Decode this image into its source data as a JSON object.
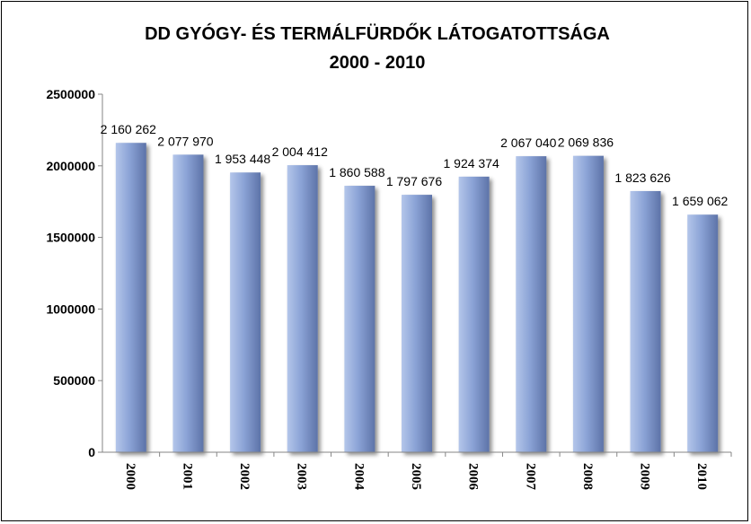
{
  "chart_data": {
    "type": "bar",
    "title": "DD GYÓGY- ÉS TERMÁLFÜRDŐK LÁTOGATOTTSÁGA",
    "subtitle": "2000 - 2010",
    "xlabel": "",
    "ylabel": "",
    "categories": [
      "2000",
      "2001",
      "2002",
      "2003",
      "2004",
      "2005",
      "2006",
      "2007",
      "2008",
      "2009",
      "2010"
    ],
    "values": [
      2160262,
      2077970,
      1953448,
      2004412,
      1860588,
      1797676,
      1924374,
      2067040,
      2069836,
      1823626,
      1659062
    ],
    "data_labels": [
      "2 160 262",
      "2 077 970",
      "1 953 448",
      "2 004 412",
      "1 860 588",
      "1 797 676",
      "1 924 374",
      "2 067 040",
      "2 069 836",
      "1 823 626",
      "1 659 062"
    ],
    "yticks": [
      "0",
      "500000",
      "1000000",
      "1500000",
      "2000000",
      "2500000"
    ],
    "ylim": [
      0,
      2500000
    ],
    "grid": false,
    "legend": "none",
    "colors": {
      "bar_light": "#b4c6ea",
      "bar_mid": "#8ba3d6",
      "bar_dark": "#5d73a8",
      "shadow": "#9a9a9a"
    }
  }
}
